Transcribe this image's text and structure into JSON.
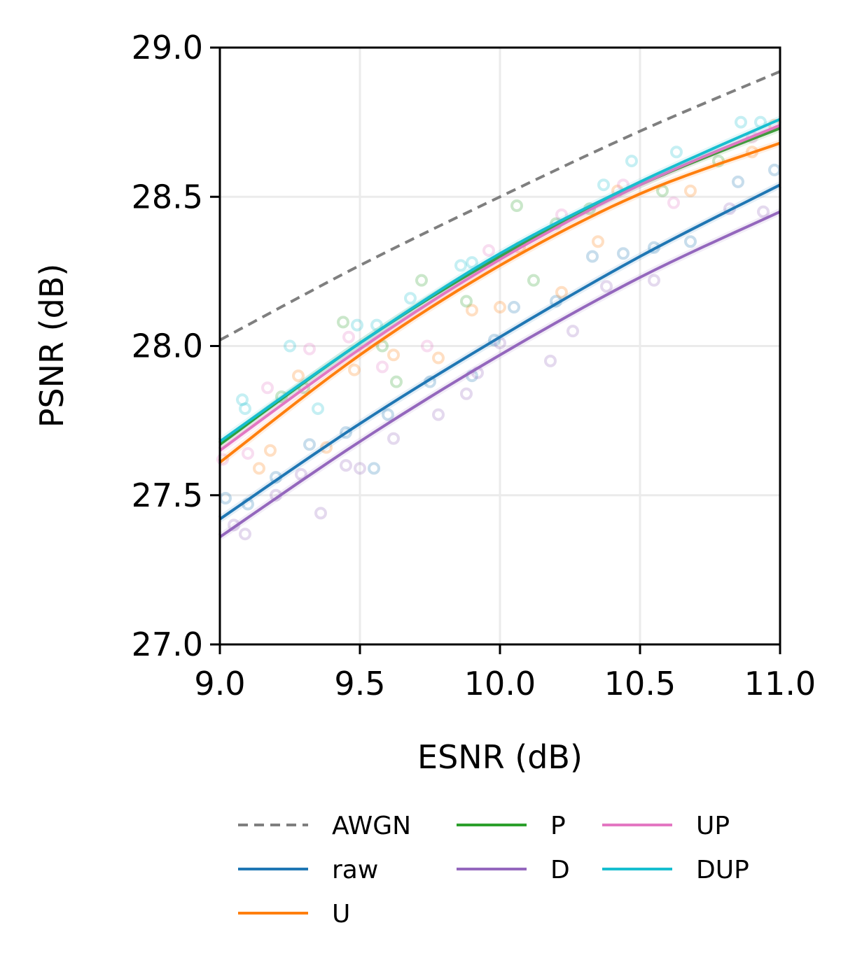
{
  "chart_data": {
    "type": "line",
    "xlabel": "ESNR (dB)",
    "ylabel": "PSNR (dB)",
    "xlim": [
      9.0,
      11.0
    ],
    "ylim": [
      27.0,
      29.0
    ],
    "xticks": [
      "9.0",
      "9.5",
      "10.0",
      "10.5",
      "11.0"
    ],
    "yticks": [
      "27.0",
      "27.5",
      "28.0",
      "28.5",
      "29.0"
    ],
    "grid": true,
    "legend_placement": "bottom",
    "x": [
      9.0,
      9.5,
      10.0,
      10.5,
      11.0
    ],
    "series": [
      {
        "name": "AWGN",
        "color": "#7f7f7f",
        "dashed": true,
        "values": [
          28.02,
          28.27,
          28.5,
          28.72,
          28.92
        ]
      },
      {
        "name": "raw",
        "color": "#1f77b4",
        "values": [
          27.42,
          27.74,
          28.03,
          28.3,
          28.54
        ],
        "points": [
          [
            9.02,
            27.49
          ],
          [
            9.1,
            27.47
          ],
          [
            9.2,
            27.56
          ],
          [
            9.32,
            27.67
          ],
          [
            9.45,
            27.71
          ],
          [
            9.55,
            27.59
          ],
          [
            9.6,
            27.77
          ],
          [
            9.75,
            27.88
          ],
          [
            9.9,
            27.9
          ],
          [
            9.98,
            28.02
          ],
          [
            10.05,
            28.13
          ],
          [
            10.2,
            28.15
          ],
          [
            10.33,
            28.3
          ],
          [
            10.44,
            28.31
          ],
          [
            10.55,
            28.33
          ],
          [
            10.68,
            28.35
          ],
          [
            10.85,
            28.55
          ],
          [
            10.98,
            28.59
          ]
        ]
      },
      {
        "name": "U",
        "color": "#ff7f0e",
        "values": [
          27.61,
          27.97,
          28.27,
          28.51,
          28.68
        ],
        "points": [
          [
            9.14,
            27.59
          ],
          [
            9.18,
            27.65
          ],
          [
            9.28,
            27.9
          ],
          [
            9.38,
            27.66
          ],
          [
            9.48,
            27.92
          ],
          [
            9.62,
            27.97
          ],
          [
            9.78,
            27.96
          ],
          [
            9.9,
            28.12
          ],
          [
            10.0,
            28.13
          ],
          [
            10.07,
            28.33
          ],
          [
            10.22,
            28.18
          ],
          [
            10.35,
            28.35
          ],
          [
            10.42,
            28.52
          ],
          [
            10.68,
            28.52
          ],
          [
            10.9,
            28.65
          ],
          [
            10.98,
            28.74
          ]
        ]
      },
      {
        "name": "P",
        "color": "#2ca02c",
        "values": [
          27.67,
          28.01,
          28.3,
          28.54,
          28.73
        ],
        "points": [
          [
            9.22,
            27.83
          ],
          [
            9.3,
            27.86
          ],
          [
            9.44,
            28.08
          ],
          [
            9.58,
            28.0
          ],
          [
            9.63,
            27.88
          ],
          [
            9.72,
            28.22
          ],
          [
            9.88,
            28.15
          ],
          [
            10.06,
            28.47
          ],
          [
            10.12,
            28.22
          ],
          [
            10.2,
            28.41
          ],
          [
            10.32,
            28.46
          ],
          [
            10.58,
            28.52
          ],
          [
            10.78,
            28.62
          ]
        ]
      },
      {
        "name": "D",
        "color": "#9467bd",
        "values": [
          27.36,
          27.68,
          27.97,
          28.23,
          28.45
        ],
        "points": [
          [
            9.05,
            27.4
          ],
          [
            9.09,
            27.37
          ],
          [
            9.2,
            27.5
          ],
          [
            9.29,
            27.57
          ],
          [
            9.36,
            27.44
          ],
          [
            9.45,
            27.6
          ],
          [
            9.5,
            27.59
          ],
          [
            9.62,
            27.69
          ],
          [
            9.78,
            27.77
          ],
          [
            9.88,
            27.84
          ],
          [
            9.92,
            27.91
          ],
          [
            10.0,
            28.01
          ],
          [
            10.18,
            27.95
          ],
          [
            10.26,
            28.05
          ],
          [
            10.38,
            28.2
          ],
          [
            10.55,
            28.22
          ],
          [
            10.82,
            28.46
          ],
          [
            10.94,
            28.45
          ]
        ]
      },
      {
        "name": "UP",
        "color": "#e377c2",
        "values": [
          27.65,
          27.99,
          28.29,
          28.54,
          28.74
        ],
        "points": [
          [
            9.01,
            27.62
          ],
          [
            9.1,
            27.64
          ],
          [
            9.17,
            27.86
          ],
          [
            9.32,
            27.99
          ],
          [
            9.46,
            28.03
          ],
          [
            9.58,
            27.93
          ],
          [
            9.74,
            28.0
          ],
          [
            9.96,
            28.32
          ],
          [
            10.22,
            28.44
          ],
          [
            10.44,
            28.54
          ],
          [
            10.62,
            28.48
          ],
          [
            10.9,
            28.7
          ]
        ]
      },
      {
        "name": "DUP",
        "color": "#17becf",
        "values": [
          27.68,
          28.01,
          28.31,
          28.55,
          28.76
        ],
        "points": [
          [
            9.08,
            27.82
          ],
          [
            9.09,
            27.79
          ],
          [
            9.25,
            28.0
          ],
          [
            9.35,
            27.79
          ],
          [
            9.49,
            28.07
          ],
          [
            9.56,
            28.07
          ],
          [
            9.68,
            28.16
          ],
          [
            9.86,
            28.27
          ],
          [
            9.9,
            28.28
          ],
          [
            10.37,
            28.54
          ],
          [
            10.47,
            28.62
          ],
          [
            10.63,
            28.65
          ],
          [
            10.86,
            28.75
          ],
          [
            10.93,
            28.75
          ]
        ]
      }
    ]
  }
}
